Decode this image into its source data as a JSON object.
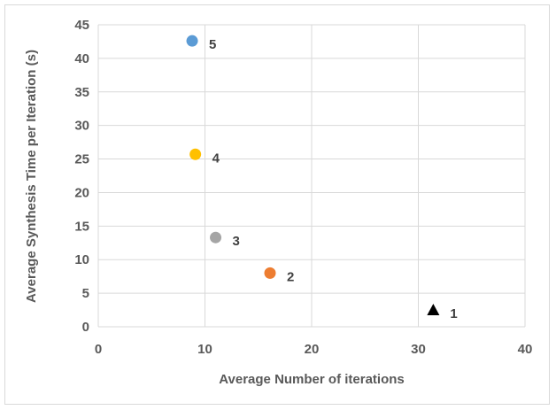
{
  "chart_data": {
    "type": "scatter",
    "title": "",
    "xlabel": "Average Number of iterations",
    "ylabel": "Average Synthesis Time per Iteration (s)",
    "xlim": [
      0,
      40
    ],
    "ylim": [
      0,
      45
    ],
    "x_ticks": [
      "0",
      "10",
      "20",
      "30",
      "40"
    ],
    "y_ticks": [
      "0",
      "5",
      "10",
      "15",
      "20",
      "25",
      "30",
      "35",
      "40",
      "45"
    ],
    "grid": true,
    "legend": "none",
    "points": [
      {
        "label": "1",
        "x": 31.4,
        "y": 2.5,
        "marker": "triangle",
        "color": "#000000"
      },
      {
        "label": "2",
        "x": 16.1,
        "y": 8.0,
        "marker": "circle",
        "color": "#ED7D31"
      },
      {
        "label": "3",
        "x": 11.0,
        "y": 13.3,
        "marker": "circle",
        "color": "#A5A5A5"
      },
      {
        "label": "4",
        "x": 9.1,
        "y": 25.7,
        "marker": "circle",
        "color": "#FFC000"
      },
      {
        "label": "5",
        "x": 8.8,
        "y": 42.6,
        "marker": "circle",
        "color": "#5B9BD5"
      }
    ]
  }
}
